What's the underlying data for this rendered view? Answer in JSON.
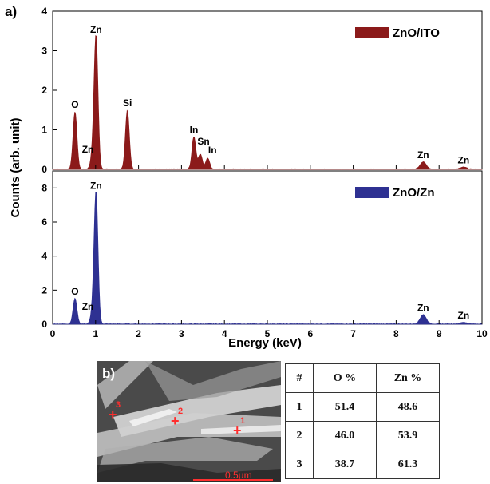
{
  "panel_a_label": "a)",
  "panel_b_label": "b)",
  "chart_data": {
    "type": "line",
    "xlabel": "Energy (keV)",
    "ylabel": "Counts (arb. unit)",
    "xlim": [
      0,
      10
    ],
    "x_ticks": [
      "0",
      "1",
      "2",
      "3",
      "4",
      "5",
      "6",
      "7",
      "8",
      "9",
      "10"
    ],
    "grid": false,
    "panels": [
      {
        "series_name": "ZnO/ITO",
        "color": "#8b1a1a",
        "legend_placement": "top-right",
        "ylim": [
          0,
          4
        ],
        "y_ticks": [
          "0",
          "1",
          "2",
          "3",
          "4"
        ],
        "peaks": [
          {
            "x": 0.52,
            "y": 1.45,
            "label": "O"
          },
          {
            "x": 0.93,
            "y": 0.32,
            "label": "Zn"
          },
          {
            "x": 1.01,
            "y": 3.35,
            "label": "Zn"
          },
          {
            "x": 1.74,
            "y": 1.5,
            "label": "Si"
          },
          {
            "x": 3.29,
            "y": 0.82,
            "label": "In"
          },
          {
            "x": 3.44,
            "y": 0.38,
            "label": "Sn"
          },
          {
            "x": 3.61,
            "y": 0.28,
            "label": "In"
          },
          {
            "x": 8.63,
            "y": 0.18,
            "label": "Zn"
          },
          {
            "x": 9.57,
            "y": 0.05,
            "label": "Zn"
          }
        ]
      },
      {
        "series_name": "ZnO/Zn",
        "color": "#2e3192",
        "legend_placement": "top-right",
        "ylim": [
          0,
          9
        ],
        "y_ticks": [
          "0",
          "2",
          "4",
          "6",
          "8"
        ],
        "peaks": [
          {
            "x": 0.52,
            "y": 1.5,
            "label": "O"
          },
          {
            "x": 0.93,
            "y": 0.6,
            "label": "Zn"
          },
          {
            "x": 1.01,
            "y": 7.7,
            "label": "Zn"
          },
          {
            "x": 8.63,
            "y": 0.55,
            "label": "Zn"
          },
          {
            "x": 9.57,
            "y": 0.1,
            "label": "Zn"
          }
        ]
      }
    ]
  },
  "sem": {
    "points": [
      {
        "label": "1"
      },
      {
        "label": "2"
      },
      {
        "label": "3"
      }
    ],
    "scale_label": "0.5μm"
  },
  "composition_table": {
    "headers": [
      "#",
      "O %",
      "Zn %"
    ],
    "rows": [
      [
        "1",
        "51.4",
        "48.6"
      ],
      [
        "2",
        "46.0",
        "53.9"
      ],
      [
        "3",
        "38.7",
        "61.3"
      ]
    ]
  }
}
